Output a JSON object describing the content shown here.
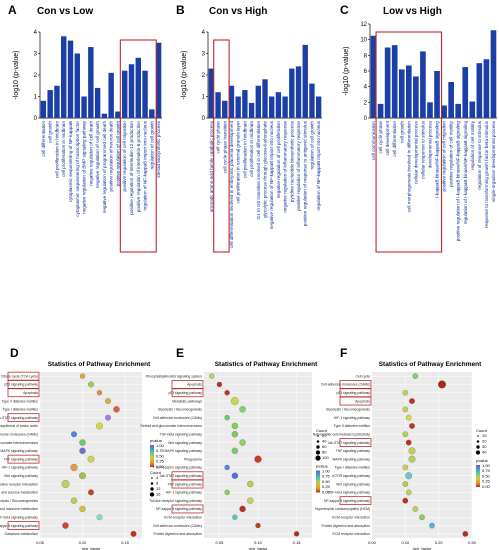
{
  "chart_data": [
    {
      "type": "bar",
      "panel": "A",
      "title": "Con vs Low",
      "ylabel": "-log10 (p-value)",
      "ylim": [
        0,
        4
      ],
      "yticks": [
        0,
        1,
        2,
        3,
        4
      ],
      "color": "#1b3fa6",
      "categories": [
        "cell differentiation",
        "cell growth",
        "cell proliferation in hindbrain",
        "cell proliferation in midbrain",
        "cytoplasmic sequestering of NF-kappaB",
        "cytoplasmic sequestering of transcription factor",
        "negative regulation of BMP signaling pathway",
        "negative regulation of cell death",
        "negative regulation of cell growth",
        "negative regulation of programmed cell death",
        "positive regulation of neuron death",
        "positive regulation of cell growth",
        "positive regulation of cell migration",
        "positive regulation of interleukin-12 production",
        "positive regulation of interleukin-6 production",
        "regulation of NF-kappaB import into nucleus",
        "regulation of cell growth",
        "steroid biosynthetic process"
      ],
      "values": [
        0.8,
        1.3,
        1.5,
        3.8,
        3.6,
        3.0,
        1.0,
        3.3,
        1.4,
        0.2,
        2.1,
        0.3,
        2.2,
        2.5,
        2.8,
        2.2,
        0.4,
        3.5
      ],
      "highlight": [
        12,
        16
      ]
    },
    {
      "type": "bar",
      "panel": "B",
      "title": "Con vs High",
      "ylabel": "-log10 (p-value)",
      "ylim": [
        0,
        4
      ],
      "yticks": [
        0,
        1,
        2,
        3,
        4
      ],
      "color": "#1b3fa6",
      "categories": [
        "aromatic amino acid family catabolic process",
        "cell cycle phase",
        "cell cycle phase transition",
        "cell differentiation involved in embryonic placenta development",
        "cell proliferation in external granule layer",
        "cell proliferation in hindbrain",
        "cell proliferation in midbrain",
        "G1 to G0 transition involved in cell differentiation",
        "glycolytic process through glucose-6-phosphate",
        "negative regulation of NF-kappaB import into nucleus",
        "negative regulation of cell proliferation",
        "negative regulation of inflammatory response",
        "pyridine nucleotide biosynthetic process",
        "positive regulation of inflammatory response",
        "positive regulation of response to antigenic stimulus",
        "regulation of cell growth",
        "regulation of NF-kappaB import into nucleus"
      ],
      "values": [
        2.3,
        1.2,
        0.8,
        1.5,
        1.0,
        1.3,
        0.7,
        1.5,
        1.8,
        1.0,
        1.2,
        1.0,
        2.3,
        2.4,
        3.4,
        1.6,
        1.0
      ],
      "highlight": [
        1,
        2,
        7,
        8
      ]
    },
    {
      "type": "bar",
      "panel": "C",
      "title": "Low vs High",
      "ylabel": "-log10 (p-value)",
      "ylim": [
        0,
        12
      ],
      "yticks": [
        0,
        2,
        4,
        6,
        8,
        10,
        12
      ],
      "color": "#1b3fa6",
      "categories": [
        "cell communication",
        "cell cycle phase",
        "cell development",
        "cell differentiation",
        "cell growth",
        "cell morphogenesis involved in differentiation",
        "cellular developmental process",
        "cellular response to stimulus",
        "developmental process",
        "I-kappaB kinase/NF-kappaB signaling",
        "positive regulation of cell migration",
        "positive regulation of cell motility",
        "positive regulation of I-kappaB kinase/NF-kappaB signaling",
        "regulation of I-kappaB kinase/NF-kappaB signaling",
        "regulation of cell motility",
        "regulation of response to stimulus",
        "response to transforming growth factor beta stimulus",
        "single-organism developmental process"
      ],
      "values": [
        10.5,
        1.8,
        9.0,
        9.3,
        6.2,
        6.7,
        5.3,
        8.5,
        2.0,
        6.0,
        1.6,
        4.6,
        1.8,
        6.5,
        2.1,
        7.0,
        7.5,
        11.2
      ],
      "highlight": [
        1,
        9
      ]
    },
    {
      "type": "scatter",
      "panel": "D",
      "title": "Statistics of Pathway Enrichment",
      "xlabel": "rich_factor",
      "xlim": [
        0.05,
        0.17
      ],
      "xticks": [
        "0.05",
        "0.10",
        "0.15"
      ],
      "legend_pvalue_title": "pvalue",
      "legend_pvalue_ticks": [
        "1.00",
        "0.75",
        "0.50",
        "0.25",
        "0.00"
      ],
      "legend_count_title": "Count",
      "legend_count_ticks": [
        "4",
        "8",
        "12",
        "16"
      ],
      "categories": [
        "Citrate cycle (TCA cycle)",
        "p53 signaling pathway",
        "Apoptosis",
        "Type II diabetes mellitus",
        "Type I diabetes mellitus",
        "Jak-STAT signaling pathway",
        "Biosynthesis of amino acids",
        "Cell adhesion molecules (CAMs)",
        "Retinol and glucuronate interconversions",
        "MAPK signaling pathway",
        "TNF signaling pathway",
        "HIF-1 signaling pathway",
        "Wnt signaling pathway",
        "Cytokine-cytokine receptor interaction",
        "Starch and sucrose metabolism",
        "Glycolysis / Gluconeogenesis",
        "Fructose and mannose metabolism",
        "TGF-beta signaling pathway",
        "NF-kappa B signaling pathway",
        "Galactose metabolism"
      ],
      "x": [
        0.1,
        0.11,
        0.12,
        0.13,
        0.14,
        0.13,
        0.12,
        0.09,
        0.1,
        0.1,
        0.11,
        0.09,
        0.1,
        0.08,
        0.11,
        0.09,
        0.1,
        0.12,
        0.08,
        0.16
      ],
      "size": [
        4,
        6,
        4,
        6,
        8,
        6,
        10,
        6,
        8,
        8,
        10,
        12,
        10,
        16,
        6,
        8,
        8,
        6,
        8,
        6
      ],
      "color": [
        "#e8a33a",
        "#9ad04a",
        "#e09040",
        "#d8b040",
        "#d86040",
        "#a080e0",
        "#d8d840",
        "#5080e0",
        "#70c870",
        "#7070d0",
        "#c8d850",
        "#e0a040",
        "#a0c050",
        "#c0d060",
        "#c04820",
        "#b0d050",
        "#d8c040",
        "#80e0c0",
        "#d04030",
        "#c03020"
      ],
      "highlight": [
        0,
        1,
        2,
        5,
        10,
        18
      ]
    },
    {
      "type": "scatter",
      "panel": "E",
      "title": "Statistics of Pathway Enrichment",
      "xlabel": "rich_factor",
      "xlim": [
        0.03,
        0.17
      ],
      "xticks": [
        "0.05",
        "0.10",
        "0.15"
      ],
      "legend_count_title": "Count",
      "legend_count_ticks": [
        "20",
        "40",
        "60",
        "80",
        "100"
      ],
      "legend_pvalue_title": "pvalue",
      "legend_pvalue_ticks": [
        "1.00",
        "0.75",
        "0.50",
        "0.25",
        "0.00"
      ],
      "categories": [
        "Phosphatidylinositol signaling system",
        "Apoptosis",
        "p53 signaling pathway",
        "Metabolic pathways",
        "Glycolysis / Gluconeogenesis",
        "Cell adhesion molecules (CAMs)",
        "Retinol and glucuronate interconversions",
        "TGF-beta signaling pathway",
        "Wnt signaling pathway",
        "MAPK signaling pathway",
        "Phagosome",
        "T cell receptor signaling pathway",
        "Jak-STAT signaling pathway",
        "TNF signaling pathway",
        "HIF-1 signaling pathway",
        "Toll-like receptor signaling pathway",
        "NF-kappa B signaling pathway",
        "ECM-receptor interaction",
        "Cell adhesion molecules (CAMs)",
        "Protein digestion and absorption"
      ],
      "x": [
        0.04,
        0.05,
        0.06,
        0.07,
        0.08,
        0.06,
        0.07,
        0.07,
        0.08,
        0.07,
        0.1,
        0.06,
        0.07,
        0.09,
        0.06,
        0.09,
        0.08,
        0.07,
        0.1,
        0.15
      ],
      "size": [
        20,
        20,
        20,
        80,
        40,
        20,
        40,
        40,
        40,
        40,
        60,
        20,
        40,
        40,
        20,
        40,
        40,
        20,
        20,
        20
      ],
      "color": [
        "#c0d060",
        "#c03020",
        "#c83020",
        "#c8d850",
        "#80d070",
        "#70c870",
        "#80d060",
        "#80c860",
        "#90d060",
        "#80c870",
        "#d03828",
        "#6080e8",
        "#5070e0",
        "#b0d050",
        "#90c860",
        "#c0d850",
        "#c03020",
        "#60c0c0",
        "#c04020",
        "#b03020"
      ],
      "highlight": [
        1,
        2,
        12,
        13,
        16
      ]
    },
    {
      "type": "scatter",
      "panel": "F",
      "title": "Statistics of Pathway Enrichment",
      "xlabel": "rich_factor",
      "xlim": [
        0.0,
        0.3
      ],
      "xticks": [
        "0.00",
        "0.10",
        "0.20",
        "0.30"
      ],
      "legend_count_title": "Count",
      "legend_count_ticks": [
        "10",
        "20",
        "30",
        "40"
      ],
      "legend_pvalue_title": "pvalue",
      "legend_pvalue_ticks": [
        "1.00",
        "0.75",
        "0.50",
        "0.25",
        "0.00"
      ],
      "categories": [
        "Cell cycle",
        "Cell adhesion molecules (CAMs)",
        "p53 signaling pathway",
        "Apoptosis",
        "Glycolysis / Gluconeogenesis",
        "HIF-1 signaling pathway",
        "Type II diabetes mellitus",
        "Natural killer cell mediated cytotoxicity",
        "Jak-STAT signaling pathway",
        "TNF signaling pathway",
        "MAPK signaling pathway",
        "Type I diabetes mellitus",
        "mTOR signaling pathway",
        "Wnt signaling pathway",
        "TGF-beta signaling pathway",
        "NF-kappa B signaling pathway",
        "Hypertrophic cardiomyopathy (HCM)",
        "ECM-receptor interaction",
        "Protein digestion and absorption",
        "ECM receptor interaction"
      ],
      "x": [
        0.13,
        0.21,
        0.1,
        0.12,
        0.1,
        0.11,
        0.12,
        0.1,
        0.11,
        0.12,
        0.12,
        0.1,
        0.11,
        0.1,
        0.11,
        0.1,
        0.13,
        0.15,
        0.18,
        0.28
      ],
      "size": [
        10,
        30,
        10,
        10,
        10,
        10,
        10,
        10,
        10,
        20,
        20,
        10,
        20,
        10,
        10,
        10,
        10,
        10,
        10,
        10
      ],
      "color": [
        "#80d070",
        "#a03010",
        "#c0d060",
        "#c03020",
        "#c0d060",
        "#d8d840",
        "#c03020",
        "#b0d050",
        "#c03020",
        "#c0d050",
        "#b0d060",
        "#c0d060",
        "#70c8c0",
        "#b0d050",
        "#c0d050",
        "#c03020",
        "#c0d060",
        "#90c860",
        "#60b0d0",
        "#b03020"
      ],
      "highlight": [
        1,
        2,
        3,
        8,
        15
      ]
    }
  ]
}
